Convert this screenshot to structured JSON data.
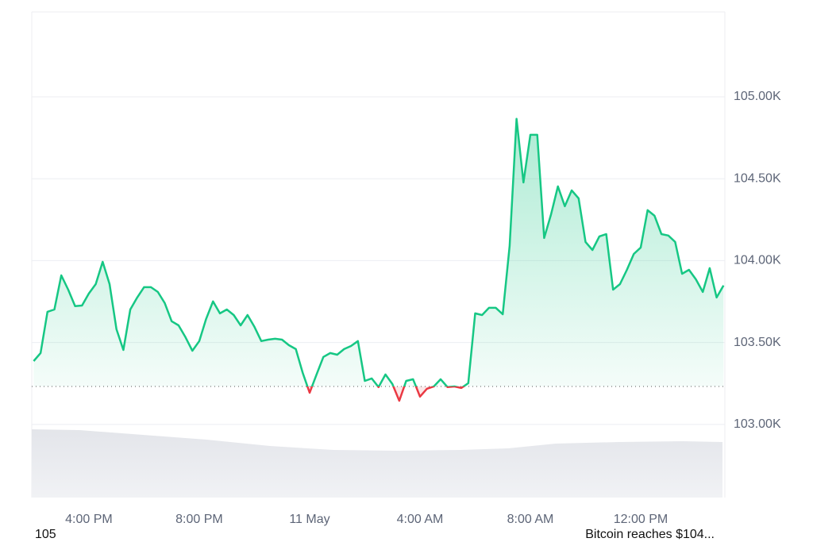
{
  "chart_data": {
    "type": "line",
    "x": [
      14,
      14.25,
      14.5,
      14.75,
      15,
      15.25,
      15.5,
      15.75,
      16,
      16.25,
      16.5,
      16.75,
      17,
      17.25,
      17.5,
      17.75,
      18,
      18.25,
      18.5,
      18.75,
      19,
      19.25,
      19.5,
      19.75,
      20,
      20.25,
      20.5,
      20.75,
      21,
      21.25,
      21.5,
      21.75,
      22,
      22.25,
      22.5,
      22.75,
      23,
      23.25,
      23.5,
      23.75,
      24,
      24.25,
      24.5,
      24.75,
      25,
      25.25,
      25.5,
      25.75,
      26,
      26.25,
      26.5,
      26.75,
      27,
      27.25,
      27.5,
      27.75,
      28,
      28.25,
      28.5,
      28.75,
      29,
      29.25,
      29.5,
      29.75,
      30,
      30.25,
      30.5,
      30.75,
      31,
      31.25,
      31.5,
      31.75,
      32,
      32.25,
      32.5,
      32.75,
      33,
      33.25,
      33.5,
      33.75,
      34,
      34.25,
      34.5,
      34.75,
      35,
      35.25,
      35.5,
      35.75,
      36,
      36.25,
      36.5,
      36.75,
      37,
      37.25,
      37.5,
      37.75,
      38,
      38.25,
      38.5,
      38.75,
      39
    ],
    "series": [
      {
        "color": "#16c784",
        "below_color": "#ea3943",
        "values": [
          103387,
          103436,
          103688,
          103702,
          103910,
          103823,
          103722,
          103726,
          103799,
          103857,
          103993,
          103857,
          103581,
          103455,
          103702,
          103775,
          103838,
          103838,
          103809,
          103741,
          103630,
          103605,
          103533,
          103450,
          103509,
          103644,
          103751,
          103678,
          103702,
          103668,
          103605,
          103668,
          103596,
          103509,
          103518,
          103523,
          103518,
          103484,
          103460,
          103315,
          103194,
          103305,
          103412,
          103436,
          103426,
          103460,
          103479,
          103509,
          103266,
          103281,
          103228,
          103305,
          103247,
          103145,
          103266,
          103276,
          103170,
          103218,
          103232,
          103276,
          103228,
          103232,
          103223,
          103252,
          103678,
          103668,
          103712,
          103712,
          103673,
          104090,
          104865,
          104477,
          104768,
          104768,
          104138,
          104283,
          104453,
          104332,
          104429,
          104380,
          104114,
          104065,
          104148,
          104162,
          103823,
          103857,
          103944,
          104041,
          104080,
          104308,
          104274,
          104162,
          104153,
          104114,
          103920,
          103944,
          103886,
          103809,
          103954,
          103775,
          103848
        ]
      }
    ],
    "baseline": 103232,
    "xlim": [
      13.93,
      39.05
    ],
    "ylim": [
      102554,
      105518
    ],
    "xticks": [
      {
        "value": 16,
        "label": "4:00 PM"
      },
      {
        "value": 20,
        "label": "8:00 PM"
      },
      {
        "value": 24,
        "label": "11 May"
      },
      {
        "value": 28,
        "label": "4:00 AM"
      },
      {
        "value": 32,
        "label": "8:00 AM"
      },
      {
        "value": 36,
        "label": "12:00 PM"
      }
    ],
    "yticks": [
      {
        "value": 103000,
        "label": "103.00K"
      },
      {
        "value": 103500,
        "label": "103.50K"
      },
      {
        "value": 104000,
        "label": "104.00K"
      },
      {
        "value": 104500,
        "label": "104.50K"
      },
      {
        "value": 105000,
        "label": "105.00K"
      }
    ],
    "grid": true
  },
  "footer": {
    "left": "105",
    "right": "Bitcoin reaches $104..."
  }
}
